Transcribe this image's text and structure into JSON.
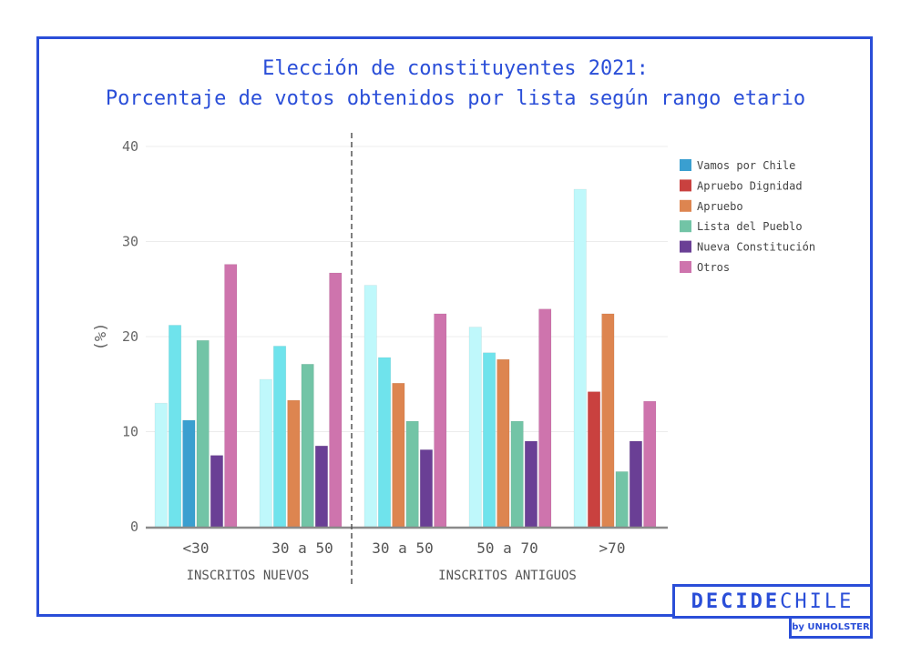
{
  "title_line1": "Elección de constituyentes 2021:",
  "title_line2": "Porcentaje de votos obtenidos por lista según rango etario",
  "brand": {
    "bold": "DECIDE",
    "light": "CHILE",
    "by": "by UNHOLSTER"
  },
  "chart_data": {
    "type": "bar",
    "ylabel": "(%)",
    "ylim": [
      0,
      40
    ],
    "yticks": [
      0,
      10,
      20,
      30,
      40
    ],
    "grid": true,
    "legend_position": "top-right",
    "categories": [
      "<30",
      "30 a 50",
      "30 a 50",
      "50 a 70",
      ">70"
    ],
    "groups": [
      {
        "label": "INSCRITOS NUEVOS",
        "categories": [
          "<30",
          "30 a 50"
        ]
      },
      {
        "label": "INSCRITOS ANTIGUOS",
        "categories": [
          "30 a 50",
          "50 a 70",
          ">70"
        ]
      }
    ],
    "unlabeled_series": [
      {
        "color": "#bff8fb",
        "values": [
          13.0,
          15.5,
          25.4,
          21.0,
          35.5
        ]
      },
      {
        "color": "#6fe3ec",
        "values": [
          21.2,
          19.0,
          17.8,
          18.3,
          null
        ]
      }
    ],
    "series": [
      {
        "name": "Vamos por Chile",
        "color": "#3a9fd0",
        "values": [
          11.2,
          null,
          null,
          null,
          null
        ]
      },
      {
        "name": "Apruebo Dignidad",
        "color": "#c9413f",
        "values": [
          null,
          null,
          null,
          null,
          14.2
        ]
      },
      {
        "name": "Apruebo",
        "color": "#dd8550",
        "values": [
          null,
          13.3,
          15.1,
          17.6,
          22.4
        ]
      },
      {
        "name": "Lista del Pueblo",
        "color": "#72c4a6",
        "values": [
          19.6,
          17.1,
          11.1,
          11.1,
          5.8
        ]
      },
      {
        "name": "Nueva Constitución",
        "color": "#6a3f95",
        "values": [
          7.5,
          8.5,
          8.1,
          9.0,
          9.0
        ]
      },
      {
        "name": "Otros",
        "color": "#ce74ad",
        "values": [
          27.6,
          26.7,
          22.4,
          22.9,
          13.2
        ]
      }
    ]
  }
}
